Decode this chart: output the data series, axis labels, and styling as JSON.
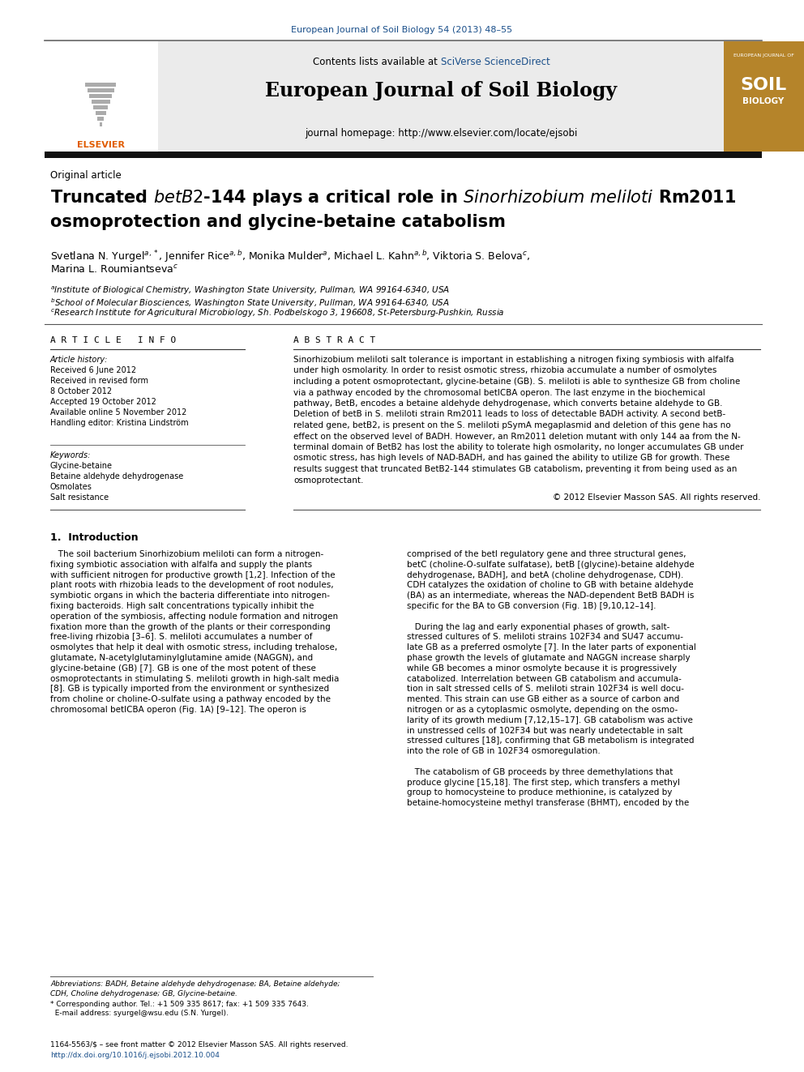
{
  "page_width": 9.92,
  "page_height": 13.23,
  "background_color": "#ffffff",
  "top_citation": "European Journal of Soil Biology 54 (2013) 48–55",
  "top_citation_color": "#1a4f8a",
  "journal_title": "European Journal of Soil Biology",
  "journal_homepage": "journal homepage: http://www.elsevier.com/locate/ejsobi",
  "article_type": "Original article",
  "copyright": "© 2012 Elsevier Masson SAS. All rights reserved.",
  "intro_title": "1.  Introduction",
  "article_info_title": "A R T I C L E   I N F O",
  "abstract_title": "A B S T R A C T",
  "article_history_label": "Article history:",
  "received1": "Received 6 June 2012",
  "received_revised": "Received in revised form",
  "received_revised2": "8 October 2012",
  "accepted": "Accepted 19 October 2012",
  "available": "Available online 5 November 2012",
  "handling": "Handling editor: Kristina Lindström",
  "keywords_label": "Keywords:",
  "kw1": "Glycine-betaine",
  "kw2": "Betaine aldehyde dehydrogenase",
  "kw3": "Osmolates",
  "kw4": "Salt resistance",
  "abstract_text_lines": [
    "Sinorhizobium meliloti salt tolerance is important in establishing a nitrogen fixing symbiosis with alfalfa",
    "under high osmolarity. In order to resist osmotic stress, rhizobia accumulate a number of osmolytes",
    "including a potent osmoprotectant, glycine-betaine (GB). S. meliloti is able to synthesize GB from choline",
    "via a pathway encoded by the chromosomal betICBA operon. The last enzyme in the biochemical",
    "pathway, BetB, encodes a betaine aldehyde dehydrogenase, which converts betaine aldehyde to GB.",
    "Deletion of betB in S. meliloti strain Rm2011 leads to loss of detectable BADH activity. A second betB-",
    "related gene, betB2, is present on the S. meliloti pSymA megaplasmid and deletion of this gene has no",
    "effect on the observed level of BADH. However, an Rm2011 deletion mutant with only 144 aa from the N-",
    "terminal domain of BetB2 has lost the ability to tolerate high osmolarity, no longer accumulates GB under",
    "osmotic stress, has high levels of NAD-BADH, and has gained the ability to utilize GB for growth. These",
    "results suggest that truncated BetB2-144 stimulates GB catabolism, preventing it from being used as an",
    "osmoprotectant."
  ],
  "intro_col1_lines": [
    "   The soil bacterium Sinorhizobium meliloti can form a nitrogen-",
    "fixing symbiotic association with alfalfa and supply the plants",
    "with sufficient nitrogen for productive growth [1,2]. Infection of the",
    "plant roots with rhizobia leads to the development of root nodules,",
    "symbiotic organs in which the bacteria differentiate into nitrogen-",
    "fixing bacteroids. High salt concentrations typically inhibit the",
    "operation of the symbiosis, affecting nodule formation and nitrogen",
    "fixation more than the growth of the plants or their corresponding",
    "free-living rhizobia [3–6]. S. meliloti accumulates a number of",
    "osmolytes that help it deal with osmotic stress, including trehalose,",
    "glutamate, N-acetylglutaminylglutamine amide (NAGGN), and",
    "glycine-betaine (GB) [7]. GB is one of the most potent of these",
    "osmoprotectants in stimulating S. meliloti growth in high-salt media",
    "[8]. GB is typically imported from the environment or synthesized",
    "from choline or choline-O-sulfate using a pathway encoded by the",
    "chromosomal betICBA operon (Fig. 1A) [9–12]. The operon is"
  ],
  "intro_col2_lines": [
    "comprised of the betI regulatory gene and three structural genes,",
    "betC (choline-O-sulfate sulfatase), betB [(glycine)-betaine aldehyde",
    "dehydrogenase, BADH], and betA (choline dehydrogenase, CDH).",
    "CDH catalyzes the oxidation of choline to GB with betaine aldehyde",
    "(BA) as an intermediate, whereas the NAD-dependent BetB BADH is",
    "specific for the BA to GB conversion (Fig. 1B) [9,10,12–14].",
    "",
    "   During the lag and early exponential phases of growth, salt-",
    "stressed cultures of S. meliloti strains 102F34 and SU47 accumu-",
    "late GB as a preferred osmolyte [7]. In the later parts of exponential",
    "phase growth the levels of glutamate and NAGGN increase sharply",
    "while GB becomes a minor osmolyte because it is progressively",
    "catabolized. Interrelation between GB catabolism and accumula-",
    "tion in salt stressed cells of S. meliloti strain 102F34 is well docu-",
    "mented. This strain can use GB either as a source of carbon and",
    "nitrogen or as a cytoplasmic osmolyte, depending on the osmo-",
    "larity of its growth medium [7,12,15–17]. GB catabolism was active",
    "in unstressed cells of 102F34 but was nearly undetectable in salt",
    "stressed cultures [18], confirming that GB metabolism is integrated",
    "into the role of GB in 102F34 osmoregulation.",
    "",
    "   The catabolism of GB proceeds by three demethylations that",
    "produce glycine [15,18]. The first step, which transfers a methyl",
    "group to homocysteine to produce methionine, is catalyzed by",
    "betaine-homocysteine methyl transferase (BHMT), encoded by the"
  ],
  "footer_abbrev1": "Abbreviations: BADH, Betaine aldehyde dehydrogenase; BA, Betaine aldehyde;",
  "footer_abbrev2": "CDH, Choline dehydrogenase; GB, Glycine-betaine.",
  "footer_corr1": "* Corresponding author. Tel.: +1 509 335 8617; fax: +1 509 335 7643.",
  "footer_corr2": "  E-mail address: syurgel@wsu.edu (S.N. Yurgel).",
  "footer_issn": "1164-5563/$ – see front matter © 2012 Elsevier Masson SAS. All rights reserved.",
  "footer_doi": "http://dx.doi.org/10.1016/j.ejsobi.2012.10.004",
  "link_color": "#1a4f8a",
  "elsevier_orange": "#e05c00",
  "cover_brown": "#b5842a",
  "gray_bg": "#ebebeb"
}
